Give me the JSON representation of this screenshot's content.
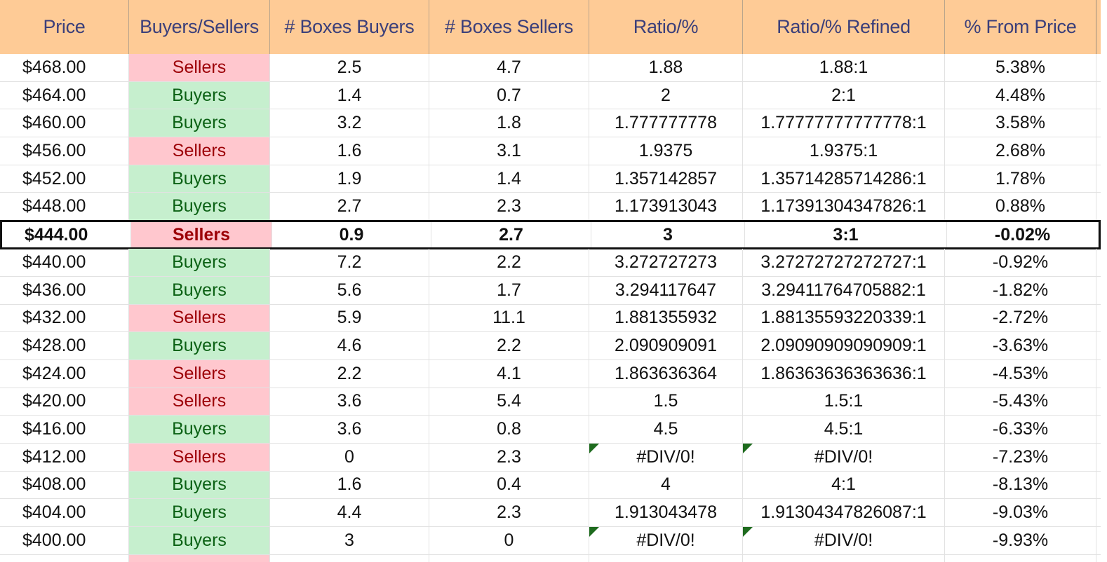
{
  "headers": [
    "Price",
    "Buyers/Sellers",
    "# Boxes Buyers",
    "# Boxes Sellers",
    "Ratio/%",
    "Ratio/% Refined",
    "% From Price"
  ],
  "colors": {
    "header_bg": "#fecb96",
    "header_text": "#3b3f7a",
    "buyers_bg": "#c6efce",
    "buyers_text": "#0b6114",
    "sellers_bg": "#ffc7ce",
    "sellers_text": "#9c0006",
    "error_flag": "#1e6b1e"
  },
  "current_row_index": 6,
  "rows": [
    {
      "price": "$468.00",
      "side": "Sellers",
      "buyers": "2.5",
      "sellers": "4.7",
      "ratio": "1.88",
      "refined": "1.88:1",
      "pct": "5.38%"
    },
    {
      "price": "$464.00",
      "side": "Buyers",
      "buyers": "1.4",
      "sellers": "0.7",
      "ratio": "2",
      "refined": "2:1",
      "pct": "4.48%"
    },
    {
      "price": "$460.00",
      "side": "Buyers",
      "buyers": "3.2",
      "sellers": "1.8",
      "ratio": "1.777777778",
      "refined": "1.77777777777778:1",
      "pct": "3.58%"
    },
    {
      "price": "$456.00",
      "side": "Sellers",
      "buyers": "1.6",
      "sellers": "3.1",
      "ratio": "1.9375",
      "refined": "1.9375:1",
      "pct": "2.68%"
    },
    {
      "price": "$452.00",
      "side": "Buyers",
      "buyers": "1.9",
      "sellers": "1.4",
      "ratio": "1.357142857",
      "refined": "1.35714285714286:1",
      "pct": "1.78%"
    },
    {
      "price": "$448.00",
      "side": "Buyers",
      "buyers": "2.7",
      "sellers": "2.3",
      "ratio": "1.173913043",
      "refined": "1.17391304347826:1",
      "pct": "0.88%"
    },
    {
      "price": "$444.00",
      "side": "Sellers",
      "buyers": "0.9",
      "sellers": "2.7",
      "ratio": "3",
      "refined": "3:1",
      "pct": "-0.02%"
    },
    {
      "price": "$440.00",
      "side": "Buyers",
      "buyers": "7.2",
      "sellers": "2.2",
      "ratio": "3.272727273",
      "refined": "3.27272727272727:1",
      "pct": "-0.92%"
    },
    {
      "price": "$436.00",
      "side": "Buyers",
      "buyers": "5.6",
      "sellers": "1.7",
      "ratio": "3.294117647",
      "refined": "3.29411764705882:1",
      "pct": "-1.82%"
    },
    {
      "price": "$432.00",
      "side": "Sellers",
      "buyers": "5.9",
      "sellers": "11.1",
      "ratio": "1.881355932",
      "refined": "1.88135593220339:1",
      "pct": "-2.72%"
    },
    {
      "price": "$428.00",
      "side": "Buyers",
      "buyers": "4.6",
      "sellers": "2.2",
      "ratio": "2.090909091",
      "refined": "2.09090909090909:1",
      "pct": "-3.63%"
    },
    {
      "price": "$424.00",
      "side": "Sellers",
      "buyers": "2.2",
      "sellers": "4.1",
      "ratio": "1.863636364",
      "refined": "1.86363636363636:1",
      "pct": "-4.53%"
    },
    {
      "price": "$420.00",
      "side": "Sellers",
      "buyers": "3.6",
      "sellers": "5.4",
      "ratio": "1.5",
      "refined": "1.5:1",
      "pct": "-5.43%"
    },
    {
      "price": "$416.00",
      "side": "Buyers",
      "buyers": "3.6",
      "sellers": "0.8",
      "ratio": "4.5",
      "refined": "4.5:1",
      "pct": "-6.33%"
    },
    {
      "price": "$412.00",
      "side": "Sellers",
      "buyers": "0",
      "sellers": "2.3",
      "ratio": "#DIV/0!",
      "refined": "#DIV/0!",
      "pct": "-7.23%",
      "error": true
    },
    {
      "price": "$408.00",
      "side": "Buyers",
      "buyers": "1.6",
      "sellers": "0.4",
      "ratio": "4",
      "refined": "4:1",
      "pct": "-8.13%"
    },
    {
      "price": "$404.00",
      "side": "Buyers",
      "buyers": "4.4",
      "sellers": "2.3",
      "ratio": "1.913043478",
      "refined": "1.91304347826087:1",
      "pct": "-9.03%"
    },
    {
      "price": "$400.00",
      "side": "Buyers",
      "buyers": "3",
      "sellers": "0",
      "ratio": "#DIV/0!",
      "refined": "#DIV/0!",
      "pct": "-9.93%",
      "error": true
    }
  ]
}
